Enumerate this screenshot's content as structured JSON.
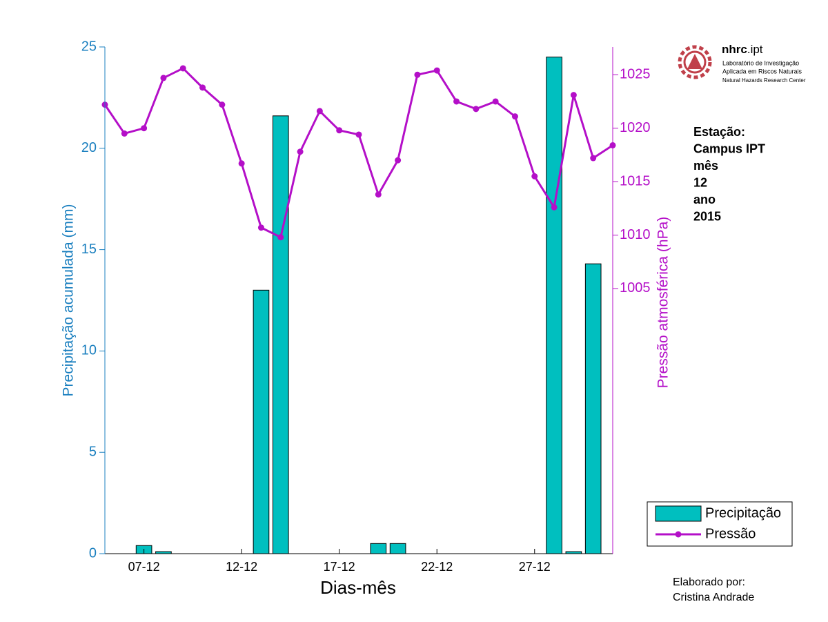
{
  "chart_data": {
    "type": "bar",
    "x_label": "Dias-mês",
    "y_label": "Precipitação acumulada (mm)",
    "y2_label": "Pressão atmosférica (hPa)",
    "x": [
      5,
      6,
      7,
      8,
      9,
      10,
      11,
      12,
      13,
      14,
      15,
      16,
      17,
      18,
      19,
      20,
      21,
      22,
      23,
      24,
      25,
      26,
      27,
      28,
      29,
      30,
      31
    ],
    "xlim": [
      5,
      31
    ],
    "xticks": [
      {
        "value": 7,
        "label": "07-12"
      },
      {
        "value": 12,
        "label": "12-12"
      },
      {
        "value": 17,
        "label": "17-12"
      },
      {
        "value": 22,
        "label": "22-12"
      },
      {
        "value": 27,
        "label": "27-12"
      }
    ],
    "ylim": [
      0,
      25
    ],
    "yticks": [
      0,
      5,
      10,
      15,
      20,
      25
    ],
    "y2lim": [
      980.2,
      1027.6
    ],
    "y2ticks": [
      1005,
      1010,
      1015,
      1020,
      1025
    ],
    "series": [
      {
        "name": "Precipitação",
        "type": "bar",
        "color": "#00bfbf",
        "values": [
          0,
          0,
          0.4,
          0.1,
          0,
          0,
          0,
          0,
          13,
          21.6,
          0,
          0,
          0,
          0,
          0.5,
          0.5,
          0,
          0,
          0,
          0,
          0,
          0,
          0,
          24.5,
          0.1,
          14.3,
          0
        ]
      },
      {
        "name": "Pressão",
        "type": "line",
        "axis": "y2",
        "color": "#b40fc8",
        "values": [
          1022.2,
          1019.5,
          1020.0,
          1024.7,
          1025.6,
          1023.8,
          1022.2,
          1016.7,
          1010.7,
          1009.8,
          1017.8,
          1021.6,
          1019.8,
          1019.4,
          1013.8,
          1017.0,
          1025.0,
          1025.4,
          1022.5,
          1021.8,
          1022.5,
          1021.1,
          1015.5,
          1012.6,
          1023.1,
          1017.2,
          1018.4
        ]
      }
    ],
    "legend": "lower right",
    "annotations": [
      "Estação:",
      "Campus IPT",
      "mês",
      "12",
      "ano",
      "2015"
    ],
    "credit": [
      "Elaborado por:",
      "Cristina Andrade"
    ],
    "logo": {
      "brand_bold": "nhrc",
      "brand_rest": ".ipt",
      "lines": [
        "Laboratório de Investigação",
        "Aplicada em Riscos Naturais",
        "Natural Hazards Research Center"
      ]
    }
  }
}
